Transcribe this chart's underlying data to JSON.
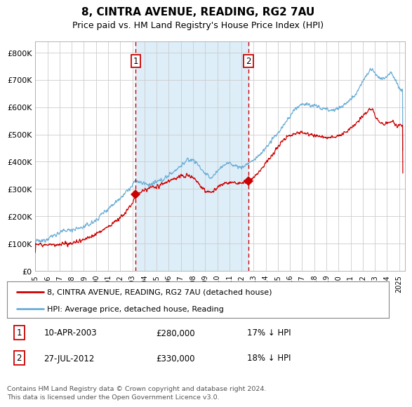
{
  "title": "8, CINTRA AVENUE, READING, RG2 7AU",
  "subtitle": "Price paid vs. HM Land Registry's House Price Index (HPI)",
  "ylabel_ticks": [
    "£0",
    "£100K",
    "£200K",
    "£300K",
    "£400K",
    "£500K",
    "£600K",
    "£700K",
    "£800K"
  ],
  "ytick_vals": [
    0,
    100000,
    200000,
    300000,
    400000,
    500000,
    600000,
    700000,
    800000
  ],
  "ylim": [
    0,
    840000
  ],
  "xlim_start": 1995.0,
  "xlim_end": 2025.5,
  "background_color": "#ffffff",
  "plot_bg_color": "#ffffff",
  "shaded_region_color": "#ddeef8",
  "grid_color": "#cccccc",
  "hpi_line_color": "#6baed6",
  "price_line_color": "#cc0000",
  "marker1_x": 2003.27,
  "marker1_y": 280000,
  "marker2_x": 2012.57,
  "marker2_y": 330000,
  "vline1_x": 2003.27,
  "vline2_x": 2012.57,
  "legend_label_red": "8, CINTRA AVENUE, READING, RG2 7AU (detached house)",
  "legend_label_blue": "HPI: Average price, detached house, Reading",
  "table_row1": [
    "1",
    "10-APR-2003",
    "£280,000",
    "17% ↓ HPI"
  ],
  "table_row2": [
    "2",
    "27-JUL-2012",
    "£330,000",
    "18% ↓ HPI"
  ],
  "footer": "Contains HM Land Registry data © Crown copyright and database right 2024.\nThis data is licensed under the Open Government Licence v3.0.",
  "xtick_years": [
    "1995",
    "1996",
    "1997",
    "1998",
    "1999",
    "2000",
    "2001",
    "2002",
    "2003",
    "2004",
    "2005",
    "2006",
    "2007",
    "2008",
    "2009",
    "2010",
    "2011",
    "2012",
    "2013",
    "2014",
    "2015",
    "2016",
    "2017",
    "2018",
    "2019",
    "2020",
    "2021",
    "2022",
    "2023",
    "2024",
    "2025"
  ]
}
